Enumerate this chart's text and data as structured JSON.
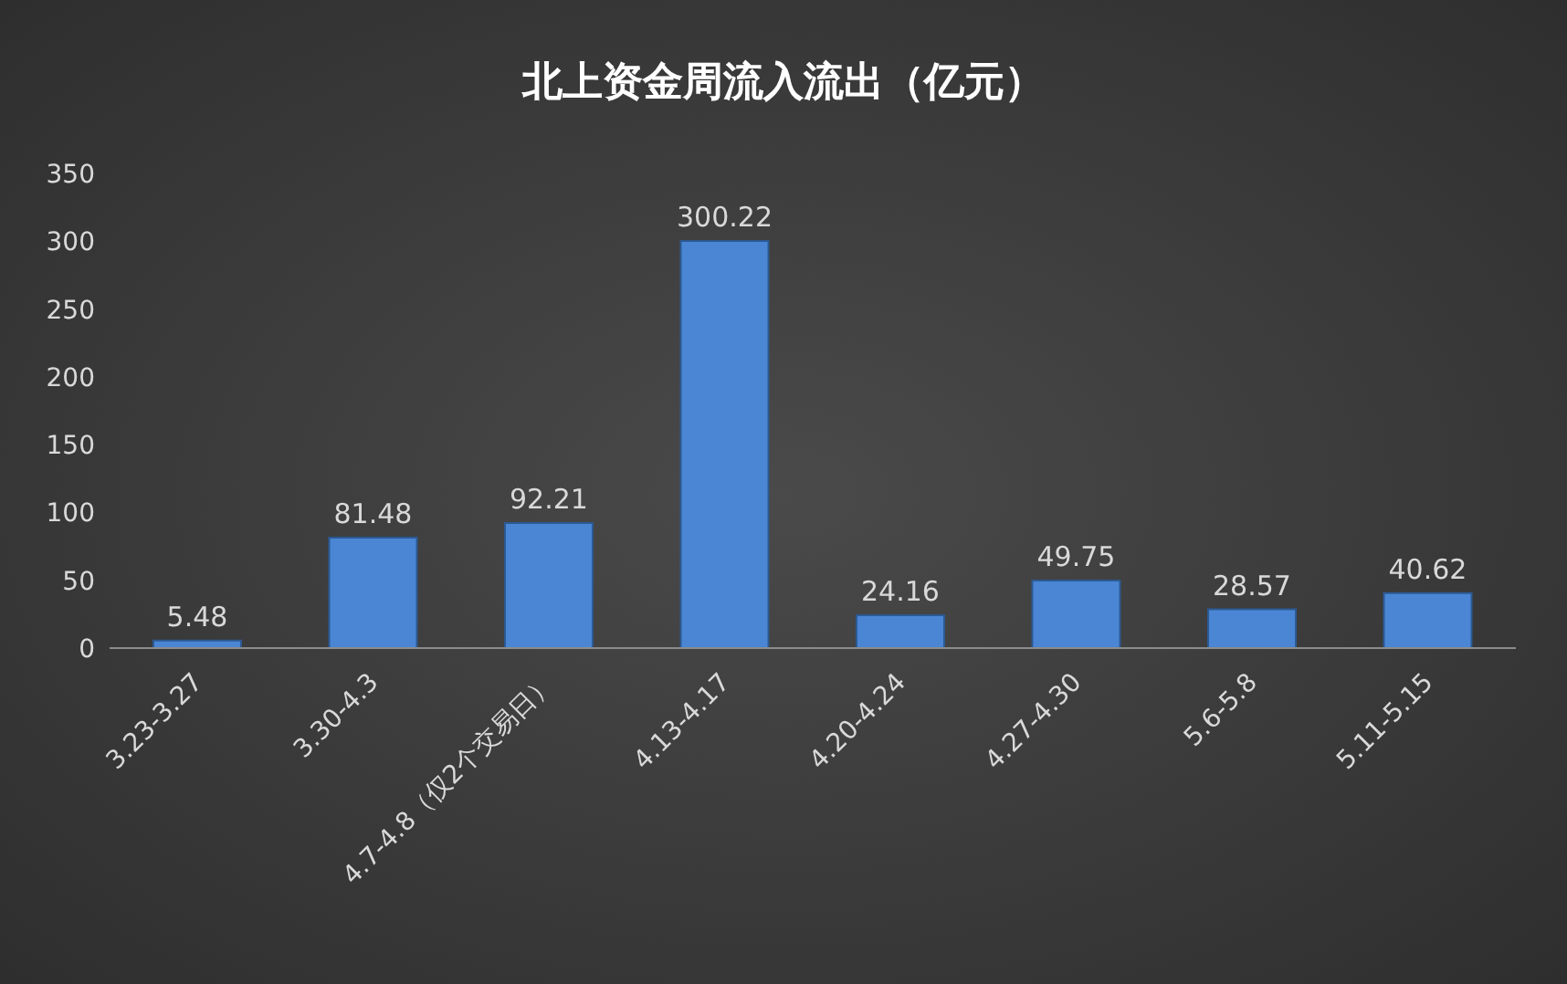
{
  "chart_data": {
    "type": "bar",
    "title": "北上资金周流入流出（亿元）",
    "categories": [
      "3.23-3.27",
      "3.30-4.3",
      "4.7-4.8（仅2个交易日）",
      "4.13-4.17",
      "4.20-4.24",
      "4.27-4.30",
      "5.6-5.8",
      "5.11-5.15"
    ],
    "values": [
      5.48,
      81.48,
      92.21,
      300.22,
      24.16,
      49.75,
      28.57,
      40.62
    ],
    "color": "#4a86d4",
    "ylim": [
      0,
      350
    ],
    "yticks": [
      0,
      50,
      100,
      150,
      200,
      250,
      300,
      350
    ],
    "grid": false,
    "data_labels": true
  }
}
